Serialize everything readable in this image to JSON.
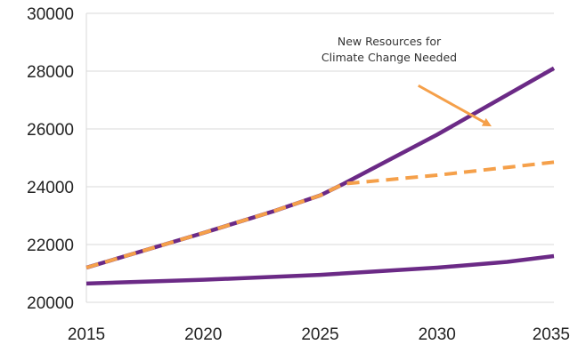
{
  "chart_data": {
    "type": "line",
    "title": "",
    "xlabel": "",
    "ylabel": "",
    "xlim": [
      2015,
      2035
    ],
    "ylim": [
      20000,
      30000
    ],
    "x_ticks": [
      "2015",
      "2020",
      "2025",
      "2030",
      "2035"
    ],
    "y_ticks": [
      "30000",
      "28000",
      "26000",
      "24000",
      "22000",
      "20000"
    ],
    "grid": "horizontal",
    "legend": "none",
    "series": [
      {
        "style": "solid",
        "color": "#6b2a86",
        "x": [
          2015,
          2020,
          2023,
          2025,
          2026,
          2030,
          2035
        ],
        "y": [
          21200,
          22400,
          23150,
          23700,
          24100,
          25800,
          28100
        ]
      },
      {
        "style": "dashed",
        "color": "#f5a04a",
        "x": [
          2015,
          2020,
          2023,
          2025,
          2026,
          2030,
          2035
        ],
        "y": [
          21200,
          22400,
          23150,
          23700,
          24100,
          24400,
          24850
        ]
      },
      {
        "style": "solid",
        "color": "#6b2a86",
        "x": [
          2015,
          2020,
          2025,
          2030,
          2033,
          2035
        ],
        "y": [
          20650,
          20780,
          20950,
          21200,
          21400,
          21600
        ]
      }
    ],
    "annotations": [
      {
        "text_lines": [
          "New Resources for",
          "Climate Change Needed"
        ],
        "arrow_color": "#f5a04a",
        "arrow_from": [
          2029.2,
          27500
        ],
        "arrow_to": [
          2032.2,
          26150
        ]
      }
    ]
  }
}
